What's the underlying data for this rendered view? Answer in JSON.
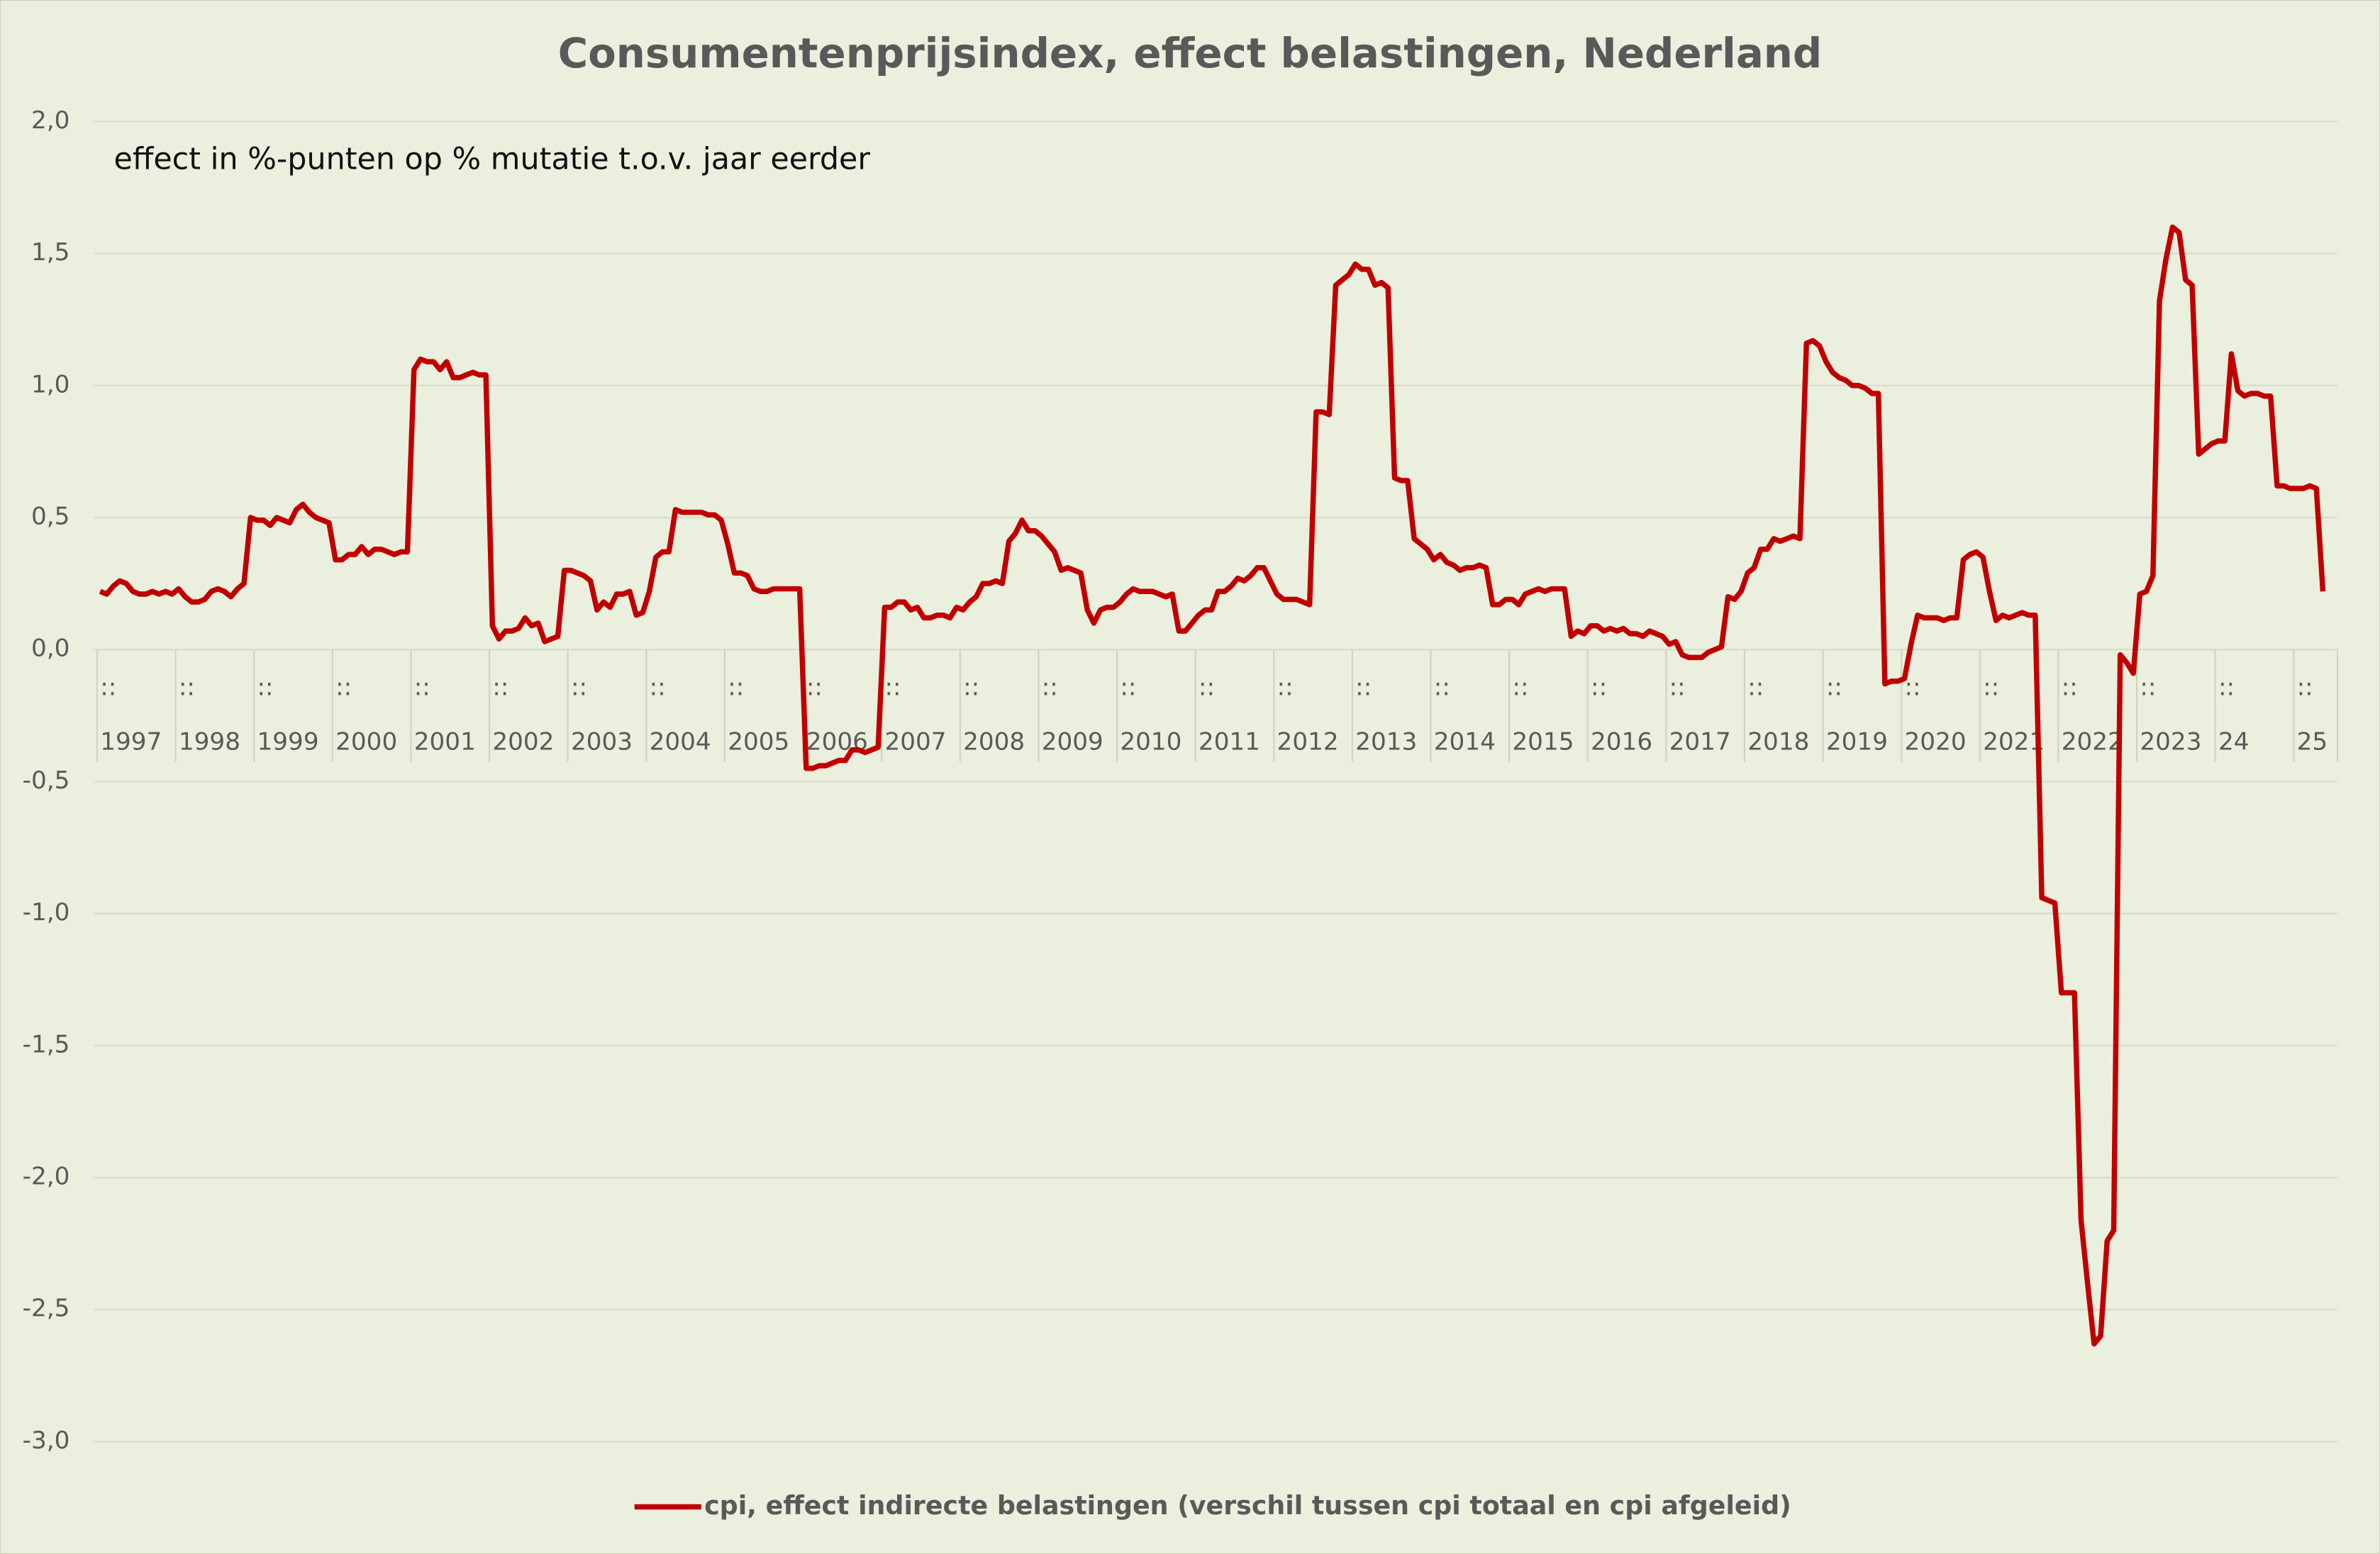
{
  "chart_data": {
    "type": "line",
    "title": "Consumentenprijsindex, effect belastingen, Nederland",
    "subtitle": "effect in %-punten op % mutatie t.o.v. jaar eerder",
    "categories": [
      ":: 1997",
      null,
      null,
      null,
      null,
      null,
      null,
      null,
      null,
      null,
      null,
      null,
      ":: 1998",
      null,
      null,
      null,
      null,
      null,
      null,
      null,
      null,
      null,
      null,
      null,
      ":: 1999",
      null,
      null,
      null,
      null,
      null,
      null,
      null,
      null,
      null,
      null,
      null,
      ":: 2000",
      null,
      null,
      null,
      null,
      null,
      null,
      null,
      null,
      null,
      null,
      null,
      ":: 2001",
      null,
      null,
      null,
      null,
      null,
      null,
      null,
      null,
      null,
      null,
      null,
      ":: 2002",
      null,
      null,
      null,
      null,
      null,
      null,
      null,
      null,
      null,
      null,
      null,
      ":: 2003",
      null,
      null,
      null,
      null,
      null,
      null,
      null,
      null,
      null,
      null,
      null,
      ":: 2004",
      null,
      null,
      null,
      null,
      null,
      null,
      null,
      null,
      null,
      null,
      null,
      ":: 2005",
      null,
      null,
      null,
      null,
      null,
      null,
      null,
      null,
      null,
      null,
      null,
      ":: 2006",
      null,
      null,
      null,
      null,
      null,
      null,
      null,
      null,
      null,
      null,
      null,
      ":: 2007",
      null,
      null,
      null,
      null,
      null,
      null,
      null,
      null,
      null,
      null,
      null,
      ":: 2008",
      null,
      null,
      null,
      null,
      null,
      null,
      null,
      null,
      null,
      null,
      null,
      ":: 2009",
      null,
      null,
      null,
      null,
      null,
      null,
      null,
      null,
      null,
      null,
      null,
      ":: 2010",
      null,
      null,
      null,
      null,
      null,
      null,
      null,
      null,
      null,
      null,
      null,
      ":: 2011",
      null,
      null,
      null,
      null,
      null,
      null,
      null,
      null,
      null,
      null,
      null,
      ":: 2012",
      null,
      null,
      null,
      null,
      null,
      null,
      null,
      null,
      null,
      null,
      null,
      ":: 2013",
      null,
      null,
      null,
      null,
      null,
      null,
      null,
      null,
      null,
      null,
      null,
      ":: 2014",
      null,
      null,
      null,
      null,
      null,
      null,
      null,
      null,
      null,
      null,
      null,
      ":: 2015",
      null,
      null,
      null,
      null,
      null,
      null,
      null,
      null,
      null,
      null,
      null,
      ":: 2016",
      null,
      null,
      null,
      null,
      null,
      null,
      null,
      null,
      null,
      null,
      null,
      ":: 2017",
      null,
      null,
      null,
      null,
      null,
      null,
      null,
      null,
      null,
      null,
      null,
      ":: 2018",
      null,
      null,
      null,
      null,
      null,
      null,
      null,
      null,
      null,
      null,
      null,
      ":: 2019",
      null,
      null,
      null,
      null,
      null,
      null,
      null,
      null,
      null,
      null,
      null,
      ":: 2020",
      null,
      null,
      null,
      null,
      null,
      null,
      null,
      null,
      null,
      null,
      null,
      ":: 2021",
      null,
      null,
      null,
      null,
      null,
      null,
      null,
      null,
      null,
      null,
      null,
      ":: 2022",
      null,
      null,
      null,
      null,
      null,
      null,
      null,
      null,
      null,
      null,
      null,
      ":: 2023",
      null,
      null,
      null,
      null,
      null,
      null,
      null,
      null,
      null,
      null,
      null,
      ":: 24",
      null,
      null,
      null,
      null,
      null,
      null,
      null,
      null,
      null,
      null,
      null,
      ":: 25",
      null,
      null,
      null,
      null
    ],
    "series": [
      {
        "name": "cpi, effect indirecte belastingen (verschil tussen cpi totaal en cpi afgeleid)",
        "color": "#c00000",
        "values": [
          0.22,
          0.21,
          0.24,
          0.26,
          0.25,
          0.22,
          0.21,
          0.21,
          0.22,
          0.21,
          0.22,
          0.21,
          0.23,
          0.2,
          0.18,
          0.18,
          0.19,
          0.22,
          0.23,
          0.22,
          0.2,
          0.23,
          0.25,
          0.5,
          0.49,
          0.49,
          0.47,
          0.5,
          0.49,
          0.48,
          0.53,
          0.55,
          0.52,
          0.5,
          0.49,
          0.48,
          0.34,
          0.34,
          0.36,
          0.36,
          0.39,
          0.36,
          0.38,
          0.38,
          0.37,
          0.36,
          0.37,
          0.37,
          1.06,
          1.1,
          1.09,
          1.09,
          1.06,
          1.09,
          1.03,
          1.03,
          1.04,
          1.05,
          1.04,
          1.04,
          0.09,
          0.04,
          0.07,
          0.07,
          0.08,
          0.12,
          0.09,
          0.1,
          0.03,
          0.04,
          0.05,
          0.3,
          0.3,
          0.29,
          0.28,
          0.26,
          0.15,
          0.18,
          0.16,
          0.21,
          0.21,
          0.22,
          0.13,
          0.14,
          0.22,
          0.35,
          0.37,
          0.37,
          0.53,
          0.52,
          0.52,
          0.52,
          0.52,
          0.51,
          0.51,
          0.49,
          0.4,
          0.29,
          0.29,
          0.28,
          0.23,
          0.22,
          0.22,
          0.23,
          0.23,
          0.23,
          0.23,
          0.23,
          -0.45,
          -0.45,
          -0.44,
          -0.44,
          -0.43,
          -0.42,
          -0.42,
          -0.38,
          -0.38,
          -0.39,
          -0.38,
          -0.37,
          0.16,
          0.16,
          0.18,
          0.18,
          0.15,
          0.16,
          0.12,
          0.12,
          0.13,
          0.13,
          0.12,
          0.16,
          0.15,
          0.18,
          0.2,
          0.25,
          0.25,
          0.26,
          0.25,
          0.41,
          0.44,
          0.49,
          0.45,
          0.45,
          0.43,
          0.4,
          0.37,
          0.3,
          0.31,
          0.3,
          0.29,
          0.15,
          0.1,
          0.15,
          0.16,
          0.16,
          0.18,
          0.21,
          0.23,
          0.22,
          0.22,
          0.22,
          0.21,
          0.2,
          0.21,
          0.07,
          0.07,
          0.1,
          0.13,
          0.15,
          0.15,
          0.22,
          0.22,
          0.24,
          0.27,
          0.26,
          0.28,
          0.31,
          0.31,
          0.26,
          0.21,
          0.19,
          0.19,
          0.19,
          0.18,
          0.17,
          0.9,
          0.9,
          0.89,
          1.38,
          1.4,
          1.42,
          1.46,
          1.44,
          1.44,
          1.38,
          1.39,
          1.37,
          0.65,
          0.64,
          0.64,
          0.42,
          0.4,
          0.38,
          0.34,
          0.36,
          0.33,
          0.32,
          0.3,
          0.31,
          0.31,
          0.32,
          0.31,
          0.17,
          0.17,
          0.19,
          0.19,
          0.17,
          0.21,
          0.22,
          0.23,
          0.22,
          0.23,
          0.23,
          0.23,
          0.05,
          0.07,
          0.06,
          0.09,
          0.09,
          0.07,
          0.08,
          0.07,
          0.08,
          0.06,
          0.06,
          0.05,
          0.07,
          0.06,
          0.05,
          0.02,
          0.03,
          -0.02,
          -0.03,
          -0.03,
          -0.03,
          -0.01,
          0.0,
          0.01,
          0.2,
          0.19,
          0.22,
          0.29,
          0.31,
          0.38,
          0.38,
          0.42,
          0.41,
          0.42,
          0.43,
          0.42,
          1.16,
          1.17,
          1.15,
          1.09,
          1.05,
          1.03,
          1.02,
          1.0,
          1.0,
          0.99,
          0.97,
          0.97,
          -0.13,
          -0.12,
          -0.12,
          -0.11,
          0.02,
          0.13,
          0.12,
          0.12,
          0.12,
          0.11,
          0.12,
          0.12,
          0.34,
          0.36,
          0.37,
          0.35,
          0.22,
          0.11,
          0.13,
          0.12,
          0.13,
          0.14,
          0.13,
          0.13,
          -0.94,
          -0.95,
          -0.96,
          -1.3,
          -1.3,
          -1.3,
          -2.16,
          -2.4,
          -2.63,
          -2.6,
          -2.24,
          -2.2,
          -0.02,
          -0.05,
          -0.09,
          0.21,
          0.22,
          0.28,
          1.32,
          1.48,
          1.6,
          1.58,
          1.4,
          1.38,
          0.74,
          0.76,
          0.78,
          0.79,
          0.79,
          1.12,
          0.98,
          0.96,
          0.97,
          0.97,
          0.96,
          0.96,
          0.62,
          0.62,
          0.61,
          0.61,
          0.61,
          0.62,
          0.61,
          0.22
        ]
      }
    ],
    "ylim": [
      -3,
      2
    ],
    "yticks": [
      {
        "value": 2,
        "label": "2,0"
      },
      {
        "value": 1.5,
        "label": "1,5"
      },
      {
        "value": 1,
        "label": "1,0"
      },
      {
        "value": 0.5,
        "label": "0,5"
      },
      {
        "value": 0,
        "label": "0,0"
      },
      {
        "value": -0.5,
        "label": "-0,5"
      },
      {
        "value": -1,
        "label": "-1,0"
      },
      {
        "value": -1.5,
        "label": "-1,5"
      },
      {
        "value": -2,
        "label": "-2,0"
      },
      {
        "value": -2.5,
        "label": "-2,5"
      },
      {
        "value": -3,
        "label": "-3,0"
      }
    ],
    "grid": true,
    "legend": "bottom"
  }
}
